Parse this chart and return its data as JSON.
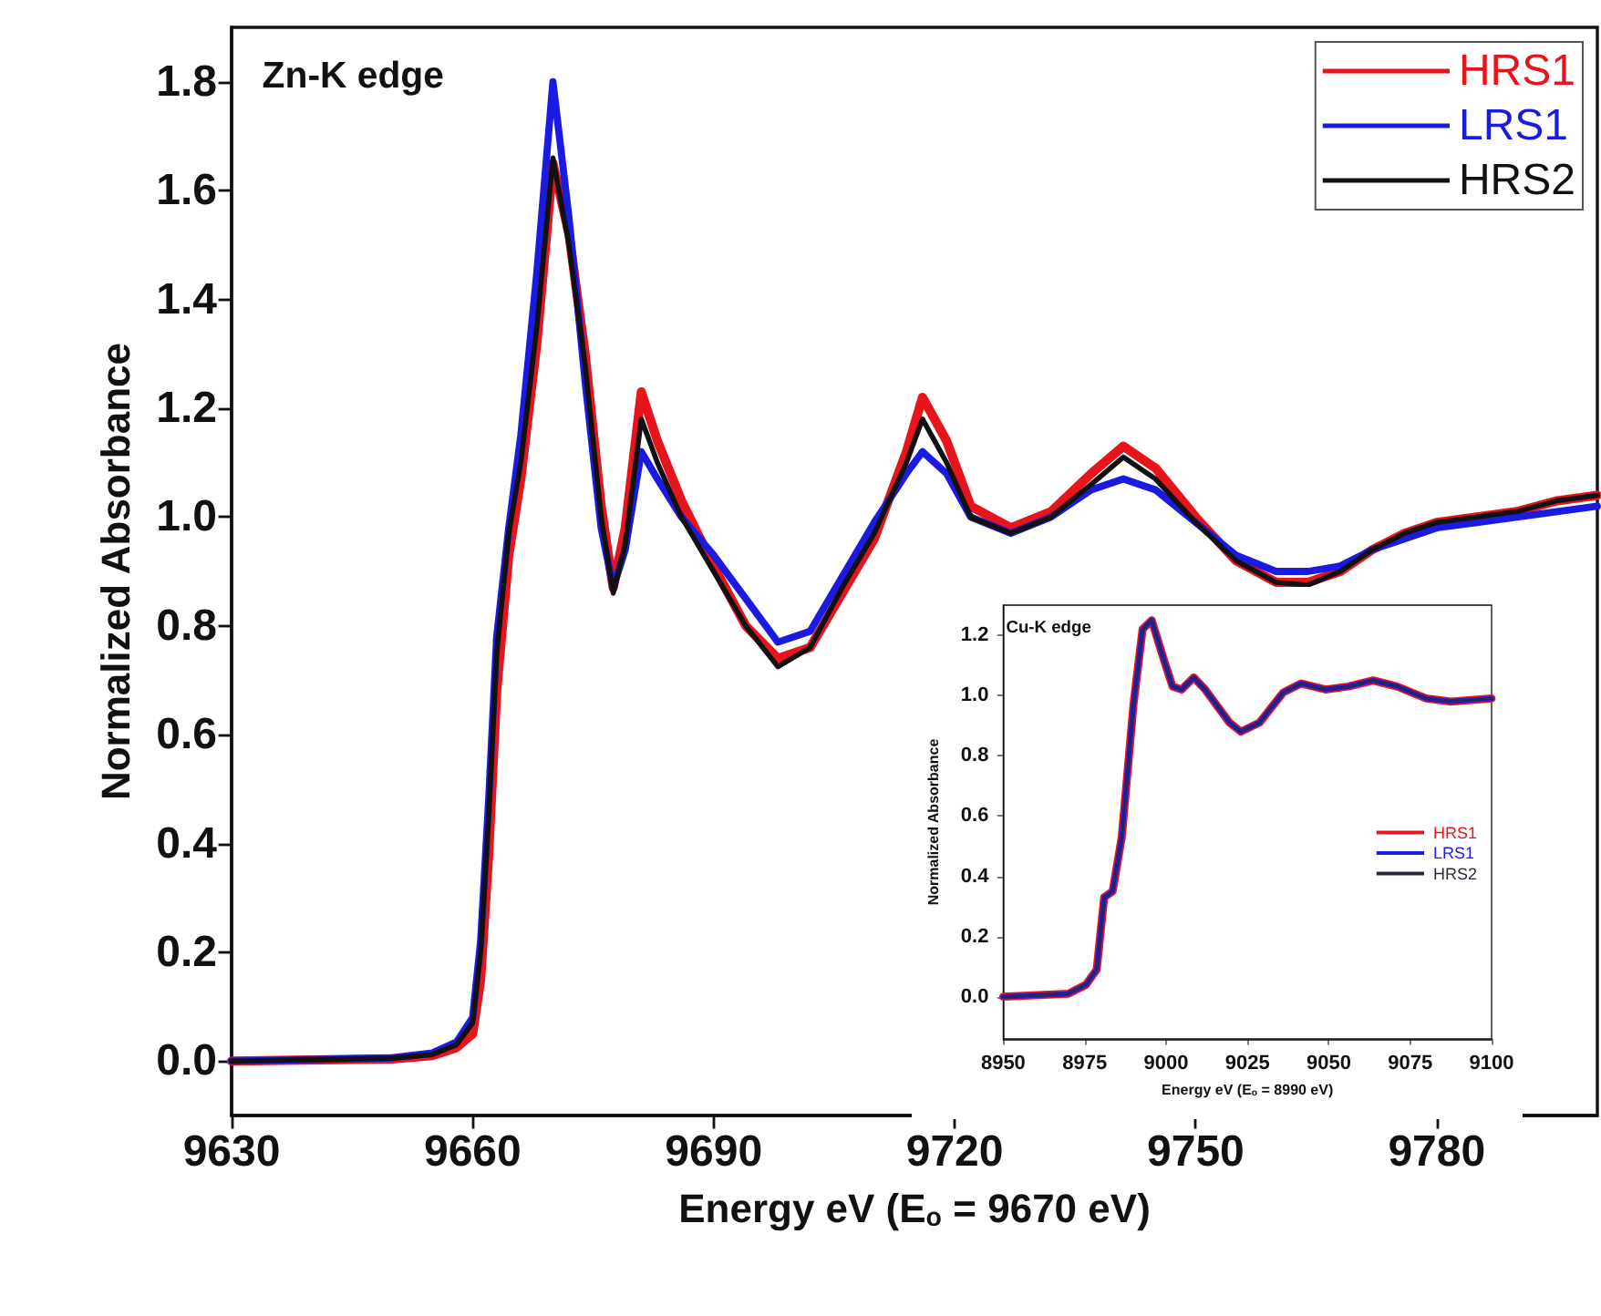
{
  "chart_data": [
    {
      "type": "line",
      "xlabel": "Energy eV (E$_{o}$ = 9670 eV)",
      "ylabel": "Normalized Absorbance",
      "annotations": [
        "Zn-K edge"
      ],
      "x": [
        9630,
        9650,
        9655,
        9658,
        9660,
        9661,
        9662,
        9663,
        9664.5,
        9666,
        9668,
        9670,
        9672,
        9674,
        9676,
        9677.5,
        9679,
        9681,
        9683,
        9686,
        9690,
        9694,
        9698,
        9702,
        9706,
        9710,
        9714,
        9716,
        9719,
        9722,
        9727,
        9732,
        9737,
        9741,
        9745,
        9750,
        9755,
        9760,
        9764,
        9768,
        9772,
        9776,
        9780,
        9785,
        9790,
        9795,
        9800
      ],
      "series": [
        {
          "name": "HRS1",
          "color": "#e8141c",
          "values": [
            0,
            0.004,
            0.01,
            0.025,
            0.05,
            0.15,
            0.38,
            0.68,
            0.93,
            1.07,
            1.32,
            1.65,
            1.52,
            1.3,
            1.02,
            0.87,
            0.98,
            1.23,
            1.14,
            1.03,
            0.91,
            0.8,
            0.74,
            0.76,
            0.86,
            0.96,
            1.12,
            1.22,
            1.14,
            1.02,
            0.98,
            1.01,
            1.08,
            1.13,
            1.09,
            1.0,
            0.92,
            0.88,
            0.88,
            0.9,
            0.94,
            0.97,
            0.99,
            1.0,
            1.01,
            1.03,
            1.04
          ]
        },
        {
          "name": "LRS1",
          "color": "#1a1ae0",
          "values": [
            0,
            0.006,
            0.015,
            0.035,
            0.08,
            0.22,
            0.48,
            0.78,
            0.98,
            1.15,
            1.45,
            1.8,
            1.55,
            1.25,
            0.98,
            0.87,
            0.94,
            1.12,
            1.07,
            1.0,
            0.93,
            0.85,
            0.77,
            0.79,
            0.89,
            0.99,
            1.08,
            1.12,
            1.08,
            1.0,
            0.97,
            1.0,
            1.05,
            1.07,
            1.05,
            0.99,
            0.93,
            0.9,
            0.9,
            0.91,
            0.94,
            0.96,
            0.98,
            0.99,
            1.0,
            1.01,
            1.02
          ]
        },
        {
          "name": "HRS2",
          "color": "#111111",
          "values": [
            0,
            0.005,
            0.012,
            0.03,
            0.07,
            0.2,
            0.45,
            0.75,
            0.97,
            1.1,
            1.35,
            1.66,
            1.5,
            1.28,
            1.0,
            0.86,
            0.95,
            1.18,
            1.1,
            1.0,
            0.9,
            0.8,
            0.725,
            0.76,
            0.87,
            0.97,
            1.1,
            1.18,
            1.1,
            1.0,
            0.97,
            1.0,
            1.06,
            1.11,
            1.07,
            0.99,
            0.92,
            0.88,
            0.875,
            0.9,
            0.94,
            0.97,
            0.99,
            1.0,
            1.01,
            1.03,
            1.04
          ]
        }
      ],
      "xlim": [
        9630,
        9800
      ],
      "xticks": [
        9630,
        9660,
        9690,
        9720,
        9750,
        9780
      ],
      "ylim": [
        -0.1,
        1.9
      ],
      "yticks": [
        {
          "value": 0,
          "label": "0.0"
        },
        {
          "value": 0.2,
          "label": "0.2"
        },
        {
          "value": 0.4,
          "label": "0.4"
        },
        {
          "value": 0.6,
          "label": "0.6"
        },
        {
          "value": 0.8,
          "label": "0.8"
        },
        {
          "value": 1,
          "label": "1.0"
        },
        {
          "value": 1.2,
          "label": "1.2"
        },
        {
          "value": 1.4,
          "label": "1.4"
        },
        {
          "value": 1.6,
          "label": "1.6"
        },
        {
          "value": 1.8,
          "label": "1.8"
        }
      ],
      "grid": false,
      "legend": "top right",
      "marker": "none",
      "line_style": "solid"
    },
    {
      "type": "line",
      "xlabel": "Energy eV (E$_{o}$ = 8990 eV)",
      "ylabel": "Normalized Absorbance",
      "annotations": [
        "Cu-K edge"
      ],
      "x": [
        8950,
        8970,
        8975.4,
        8978.7,
        8981,
        8983.6,
        8986.4,
        8990,
        8992.8,
        8995.6,
        8999.3,
        9002,
        9004.8,
        9008.5,
        9012,
        9019.5,
        9023,
        9028.7,
        9036,
        9041.5,
        9049,
        9056,
        9063.6,
        9071,
        9080,
        9087.5,
        9100
      ],
      "series": [
        {
          "name": "HRS1",
          "color": "#e8141c",
          "values": [
            0,
            0.01,
            0.04,
            0.09,
            0.33,
            0.35,
            0.53,
            0.97,
            1.22,
            1.25,
            1.12,
            1.03,
            1.02,
            1.06,
            1.02,
            0.91,
            0.88,
            0.91,
            1.01,
            1.04,
            1.02,
            1.03,
            1.05,
            1.03,
            0.99,
            0.98,
            0.99
          ]
        },
        {
          "name": "LRS1",
          "color": "#1a1ae0",
          "values": [
            0,
            0.01,
            0.04,
            0.09,
            0.33,
            0.35,
            0.53,
            0.97,
            1.22,
            1.25,
            1.12,
            1.03,
            1.02,
            1.06,
            1.02,
            0.91,
            0.88,
            0.91,
            1.01,
            1.04,
            1.02,
            1.03,
            1.05,
            1.03,
            0.99,
            0.98,
            0.99
          ]
        },
        {
          "name": "HRS2",
          "color": "#2a2a3a",
          "values": [
            0,
            0.01,
            0.04,
            0.09,
            0.33,
            0.35,
            0.53,
            0.97,
            1.22,
            1.25,
            1.12,
            1.03,
            1.02,
            1.06,
            1.02,
            0.91,
            0.88,
            0.91,
            1.01,
            1.04,
            1.02,
            1.03,
            1.05,
            1.03,
            0.99,
            0.98,
            0.99
          ]
        }
      ],
      "xlim": [
        8950,
        9100
      ],
      "xticks": [
        8950,
        8975,
        9000,
        9025,
        9050,
        9075,
        9100
      ],
      "ylim": [
        -0.14,
        1.3
      ],
      "yticks": [
        {
          "value": 0,
          "label": "0.0"
        },
        {
          "value": 0.2,
          "label": "0.2"
        },
        {
          "value": 0.4,
          "label": "0.4"
        },
        {
          "value": 0.6,
          "label": "0.6"
        },
        {
          "value": 0.8,
          "label": "0.8"
        },
        {
          "value": 1,
          "label": "1.0"
        },
        {
          "value": 1.2,
          "label": "1.2"
        }
      ],
      "grid": false,
      "legend": "right",
      "marker": "none",
      "line_style": "solid"
    }
  ]
}
